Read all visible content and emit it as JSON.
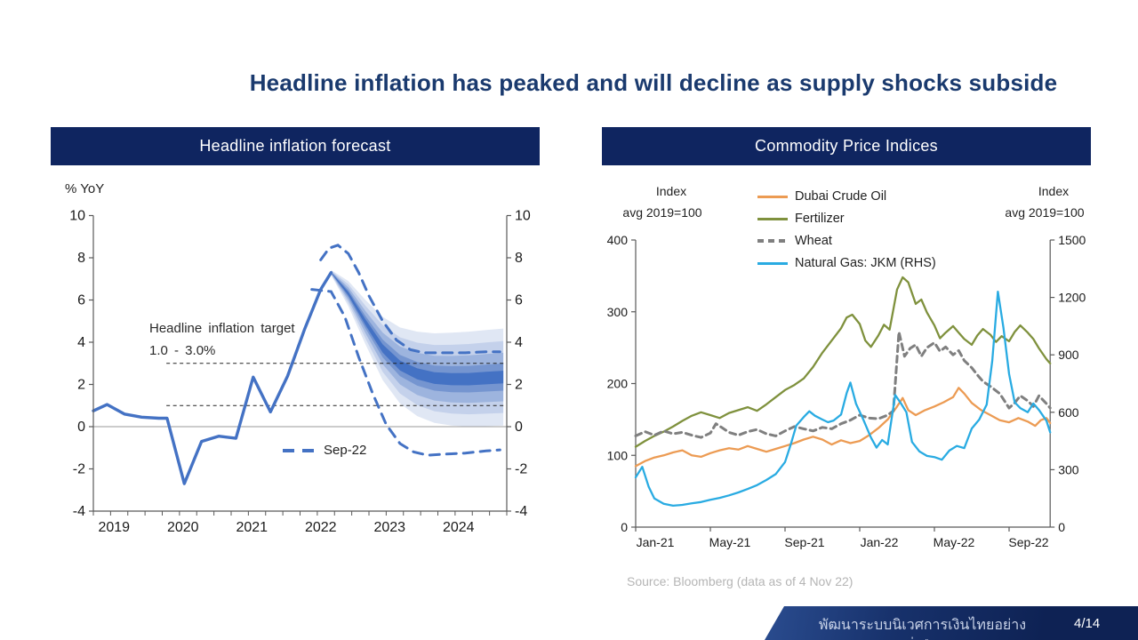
{
  "slide": {
    "title": "Headline inflation has peaked and will decline as supply shocks subside",
    "source": "Source: Bloomberg (data as of 4 Nov 22)",
    "footer_text": "พัฒนาระบบนิเวศการเงินไทยอย่างยั่งยืน",
    "page": "4/14"
  },
  "colors": {
    "header_navy": "#0f2560",
    "title_navy": "#1a3a6e",
    "forecast_blue": "#4472c4"
  },
  "left_panel": {
    "header": "Headline inflation forecast",
    "unit_label": "% YoY",
    "annotation_line1": "Headline inflation target",
    "annotation_line2": "1.0 - 3.0%",
    "legend_label": "Sep-22"
  },
  "right_panel": {
    "header": "Commodity Price Indices",
    "left_axis_label1": "Index",
    "left_axis_label2": "avg 2019=100",
    "right_axis_label1": "Index",
    "right_axis_label2": "avg 2019=100"
  },
  "chart_data": [
    {
      "type": "line",
      "title": "Headline inflation forecast",
      "ylabel": "% YoY",
      "ylim": [
        -4,
        10
      ],
      "yticks": [
        -4,
        -2,
        0,
        2,
        4,
        6,
        8,
        10
      ],
      "xlim": [
        2019,
        2025
      ],
      "xticks": [
        2019,
        2020,
        2021,
        2022,
        2023,
        2024
      ],
      "grid": false,
      "line_color": "#4472c4",
      "target_band": {
        "upper": 3.0,
        "lower": 1.0,
        "start_x": 2020.06
      },
      "history": {
        "name": "Headline inflation (actual, % YoY)",
        "x": [
          2019.0,
          2019.2,
          2019.45,
          2019.7,
          2019.95,
          2020.07,
          2020.32,
          2020.57,
          2020.82,
          2021.07,
          2021.32,
          2021.57,
          2021.82,
          2022.07,
          2022.3,
          2022.45
        ],
        "y": [
          0.75,
          1.05,
          0.6,
          0.45,
          0.4,
          0.4,
          -2.7,
          -0.7,
          -0.45,
          -0.55,
          2.35,
          0.7,
          2.4,
          4.65,
          6.5,
          7.3
        ]
      },
      "fan": {
        "name": "Current forecast fan (median and confidence bands)",
        "x": [
          2022.45,
          2022.7,
          2022.95,
          2023.2,
          2023.45,
          2023.7,
          2023.95,
          2024.2,
          2024.45,
          2024.7,
          2024.95
        ],
        "median": [
          7.3,
          6.3,
          4.95,
          3.7,
          2.9,
          2.5,
          2.3,
          2.25,
          2.25,
          2.3,
          2.35
        ],
        "halfwidth": [
          0.12,
          0.6,
          1.05,
          1.5,
          1.8,
          2.0,
          2.12,
          2.2,
          2.25,
          2.28,
          2.3
        ],
        "levels": [
          1.0,
          0.74,
          0.5,
          0.28,
          0.13
        ],
        "colors": [
          "#e0e7f4",
          "#c4d1eb",
          "#9db4de",
          "#7595d0",
          "#4472c4"
        ]
      },
      "sep22_upper": {
        "name": "Sep-22 forecast upper bound",
        "x": [
          2022.3,
          2022.42,
          2022.55,
          2022.7,
          2022.85,
          2023.0,
          2023.2,
          2023.4,
          2023.6,
          2023.8,
          2024.1,
          2024.4,
          2024.7,
          2024.9
        ],
        "y": [
          7.9,
          8.45,
          8.6,
          8.2,
          7.3,
          6.2,
          5.0,
          4.1,
          3.65,
          3.5,
          3.5,
          3.5,
          3.55,
          3.55
        ]
      },
      "sep22_lower": {
        "name": "Sep-22 forecast lower bound",
        "x": [
          2022.17,
          2022.45,
          2022.65,
          2022.85,
          2023.05,
          2023.25,
          2023.45,
          2023.65,
          2023.85,
          2024.1,
          2024.4,
          2024.7,
          2024.9
        ],
        "y": [
          6.5,
          6.4,
          5.2,
          3.3,
          1.6,
          0.1,
          -0.8,
          -1.2,
          -1.35,
          -1.3,
          -1.25,
          -1.15,
          -1.1
        ]
      }
    },
    {
      "type": "line",
      "title": "Commodity Price Indices",
      "ylabel_left": "Index avg 2019=100",
      "ylabel_right": "Index avg 2019=100",
      "left_axis": {
        "range": [
          0,
          400
        ],
        "ticks": [
          0,
          100,
          200,
          300,
          400
        ]
      },
      "right_axis": {
        "range": [
          0,
          1500
        ],
        "ticks": [
          0,
          300,
          600,
          900,
          1200,
          1500
        ]
      },
      "x_unit": "months since Jan-2021",
      "xlim": [
        0,
        22.2
      ],
      "xticks": [
        {
          "t": 0,
          "label": "Jan-21"
        },
        {
          "t": 4,
          "label": "May-21"
        },
        {
          "t": 8,
          "label": "Sep-21"
        },
        {
          "t": 12,
          "label": "Jan-22"
        },
        {
          "t": 16,
          "label": "May-22"
        },
        {
          "t": 20,
          "label": "Sep-22"
        }
      ],
      "series": [
        {
          "name": "Dubai Crude Oil",
          "color": "#ec9b53",
          "style": "solid",
          "axis": "left",
          "x": [
            0,
            0.5,
            1,
            1.5,
            2,
            2.5,
            3,
            3.5,
            4,
            4.5,
            5,
            5.5,
            6,
            6.5,
            7,
            7.5,
            8,
            8.5,
            9,
            9.5,
            10,
            10.5,
            11,
            11.5,
            12,
            12.5,
            13,
            13.5,
            14,
            14.3,
            14.6,
            15,
            15.5,
            16,
            16.5,
            17,
            17.3,
            17.6,
            18,
            18.5,
            19,
            19.5,
            20,
            20.5,
            21,
            21.4,
            21.7,
            22,
            22.2
          ],
          "y": [
            85,
            92,
            97,
            100,
            104,
            107,
            100,
            98,
            103,
            107,
            110,
            108,
            113,
            109,
            105,
            109,
            113,
            117,
            122,
            126,
            122,
            115,
            121,
            117,
            120,
            128,
            138,
            150,
            168,
            180,
            163,
            156,
            163,
            168,
            174,
            181,
            194,
            186,
            173,
            163,
            156,
            149,
            146,
            152,
            147,
            141,
            149,
            152,
            145
          ]
        },
        {
          "name": "Fertilizer",
          "color": "#7f913d",
          "style": "solid",
          "axis": "left",
          "x": [
            0,
            0.5,
            1,
            1.5,
            2,
            2.5,
            3,
            3.5,
            4,
            4.5,
            5,
            5.5,
            6,
            6.5,
            7,
            7.5,
            8,
            8.5,
            9,
            9.5,
            10,
            10.5,
            11,
            11.3,
            11.6,
            12,
            12.3,
            12.6,
            13,
            13.3,
            13.6,
            14,
            14.3,
            14.6,
            15,
            15.3,
            15.6,
            16,
            16.3,
            16.6,
            17,
            17.3,
            17.6,
            18,
            18.3,
            18.6,
            19,
            19.3,
            19.6,
            20,
            20.3,
            20.6,
            21,
            21.3,
            21.6,
            22,
            22.2
          ],
          "y": [
            112,
            120,
            127,
            133,
            140,
            148,
            155,
            160,
            156,
            152,
            159,
            163,
            167,
            162,
            171,
            181,
            191,
            198,
            207,
            223,
            243,
            260,
            277,
            292,
            296,
            283,
            260,
            251,
            267,
            282,
            275,
            331,
            348,
            341,
            311,
            317,
            299,
            281,
            263,
            271,
            280,
            271,
            262,
            254,
            267,
            276,
            268,
            258,
            266,
            259,
            272,
            281,
            271,
            262,
            249,
            234,
            228
          ]
        },
        {
          "name": "Wheat",
          "color": "#7f7f7f",
          "style": "dashed",
          "axis": "left",
          "x": [
            0,
            0.5,
            1,
            1.5,
            2,
            2.5,
            3,
            3.5,
            4,
            4.3,
            4.6,
            5,
            5.5,
            6,
            6.5,
            7,
            7.5,
            8,
            8.5,
            9,
            9.5,
            10,
            10.5,
            11,
            11.5,
            12,
            12.5,
            13,
            13.5,
            13.8,
            14.1,
            14.4,
            14.7,
            15,
            15.3,
            15.6,
            16,
            16.3,
            16.6,
            17,
            17.3,
            17.6,
            18,
            18.3,
            18.6,
            19,
            19.5,
            20,
            20.3,
            20.6,
            21,
            21.3,
            21.6,
            22,
            22.2
          ],
          "y": [
            127,
            133,
            128,
            134,
            130,
            132,
            128,
            125,
            131,
            144,
            139,
            132,
            128,
            133,
            136,
            130,
            127,
            134,
            140,
            137,
            134,
            139,
            137,
            144,
            149,
            156,
            152,
            151,
            156,
            162,
            272,
            238,
            249,
            254,
            238,
            250,
            257,
            245,
            251,
            240,
            246,
            232,
            222,
            212,
            203,
            196,
            186,
            166,
            173,
            183,
            176,
            168,
            183,
            172,
            166
          ]
        },
        {
          "name": "Natural Gas: JKM (RHS)",
          "color": "#29abe2",
          "style": "solid",
          "axis": "right",
          "x": [
            0,
            0.35,
            0.7,
            1,
            1.5,
            2,
            2.5,
            3,
            3.5,
            4,
            4.5,
            5,
            5.5,
            6,
            6.5,
            7,
            7.5,
            8,
            8.3,
            8.6,
            9,
            9.3,
            9.6,
            10,
            10.3,
            10.6,
            11,
            11.3,
            11.5,
            11.8,
            12.2,
            12.6,
            12.9,
            13.2,
            13.5,
            13.9,
            14.2,
            14.5,
            14.8,
            15.2,
            15.6,
            16,
            16.4,
            16.8,
            17.2,
            17.6,
            18,
            18.4,
            18.8,
            19.1,
            19.4,
            19.7,
            20,
            20.3,
            20.6,
            21,
            21.3,
            21.6,
            22,
            22.2
          ],
          "y": [
            260,
            315,
            210,
            150,
            122,
            112,
            116,
            124,
            131,
            143,
            153,
            166,
            181,
            199,
            219,
            246,
            277,
            340,
            430,
            530,
            575,
            605,
            582,
            562,
            548,
            557,
            588,
            700,
            755,
            645,
            560,
            468,
            415,
            455,
            432,
            690,
            648,
            600,
            445,
            395,
            372,
            366,
            352,
            400,
            424,
            413,
            515,
            562,
            640,
            870,
            1230,
            1040,
            800,
            652,
            622,
            600,
            646,
            612,
            556,
            495
          ]
        }
      ]
    }
  ]
}
